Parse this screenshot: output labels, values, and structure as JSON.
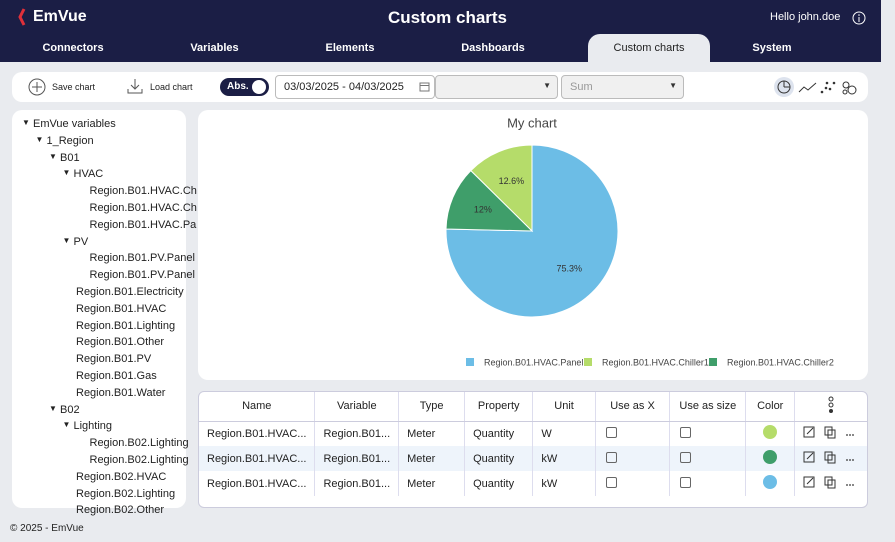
{
  "header": {
    "logo": "EmVue",
    "title": "Custom charts",
    "greeting": "Hello john.doe"
  },
  "nav": {
    "tabs": [
      "Connectors",
      "Variables",
      "Elements",
      "Dashboards",
      "Custom charts",
      "System"
    ],
    "active": 4
  },
  "toolbar": {
    "save": "Save chart",
    "load": "Load chart",
    "toggle": "Abs.",
    "date_range": "03/03/2025 - 04/03/2025",
    "variable_select": "",
    "aggregation": "Sum"
  },
  "tree": {
    "label": "EmVue variables",
    "children": [
      {
        "label": "1_Region",
        "children": [
          {
            "label": "B01",
            "children": [
              {
                "label": "HVAC",
                "children": [
                  {
                    "label": "Region.B01.HVAC.Ch"
                  },
                  {
                    "label": "Region.B01.HVAC.Ch"
                  },
                  {
                    "label": "Region.B01.HVAC.Pa"
                  }
                ]
              },
              {
                "label": "PV",
                "children": [
                  {
                    "label": "Region.B01.PV.Panel"
                  },
                  {
                    "label": "Region.B01.PV.Panel"
                  }
                ]
              },
              {
                "label": "Region.B01.Electricity"
              },
              {
                "label": "Region.B01.HVAC"
              },
              {
                "label": "Region.B01.Lighting"
              },
              {
                "label": "Region.B01.Other"
              },
              {
                "label": "Region.B01.PV"
              },
              {
                "label": "Region.B01.Gas"
              },
              {
                "label": "Region.B01.Water"
              }
            ]
          },
          {
            "label": "B02",
            "children": [
              {
                "label": "Lighting",
                "children": [
                  {
                    "label": "Region.B02.Lighting"
                  },
                  {
                    "label": "Region.B02.Lighting"
                  }
                ]
              },
              {
                "label": "Region.B02.HVAC"
              },
              {
                "label": "Region.B02.Lighting"
              },
              {
                "label": "Region.B02.Other"
              }
            ]
          }
        ]
      }
    ]
  },
  "chart": {
    "type": "pie",
    "title": "My chart",
    "categories": [
      "Region.B01.HVAC.Panel",
      "Region.B01.HVAC.Chiller1",
      "Region.B01.HVAC.Chiller2"
    ],
    "values": [
      75.3,
      12.6,
      12
    ],
    "value_labels": [
      "75.3%",
      "12.6%",
      "12%"
    ],
    "colors": [
      "#6cbde6",
      "#b5dc6a",
      "#3f9e6a"
    ]
  },
  "table": {
    "columns": [
      "Name",
      "Variable",
      "Type",
      "Property",
      "Unit",
      "Use as X",
      "Use as size",
      "Color"
    ],
    "rows": [
      {
        "cells": [
          "Region.B01.HVAC...",
          "Region.B01...",
          "Meter",
          "Quantity",
          "W"
        ],
        "color": "#b5dc6a"
      },
      {
        "cells": [
          "Region.B01.HVAC...",
          "Region.B01...",
          "Meter",
          "Quantity",
          "kW"
        ],
        "color": "#3f9e6a"
      },
      {
        "cells": [
          "Region.B01.HVAC...",
          "Region.B01...",
          "Meter",
          "Quantity",
          "kW"
        ],
        "color": "#6cbde6"
      }
    ]
  },
  "footer": "© 2025 - EmVue"
}
